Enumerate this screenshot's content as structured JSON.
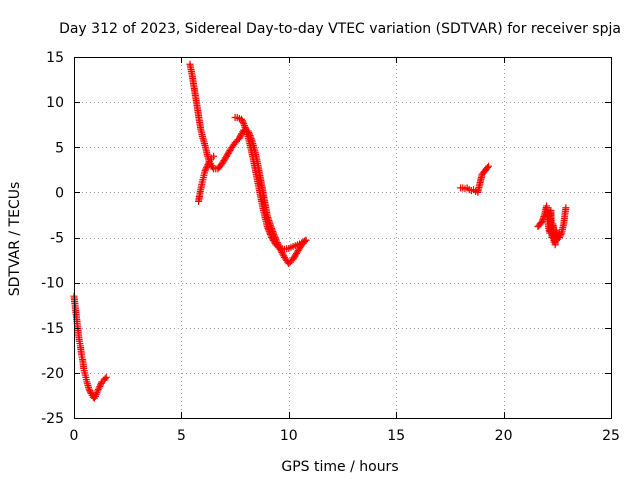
{
  "chart_data": {
    "type": "scatter",
    "title": "Day 312 of 2023, Sidereal Day-to-day VTEC variation (SDTVAR) for receiver spja",
    "xlabel": "GPS time / hours",
    "ylabel": "SDTVAR / TECUs",
    "xlim": [
      0,
      25
    ],
    "ylim": [
      -25,
      15
    ],
    "xticks": [
      0,
      5,
      10,
      15,
      20,
      25
    ],
    "yticks": [
      -25,
      -20,
      -15,
      -10,
      -5,
      0,
      5,
      10,
      15
    ],
    "grid": true,
    "marker": "+",
    "color": "#ff0000",
    "series": [
      {
        "name": "segment-1",
        "x": [
          0.0,
          0.05,
          0.1,
          0.15,
          0.2,
          0.25,
          0.3,
          0.35,
          0.4,
          0.45,
          0.5,
          0.55,
          0.6,
          0.7,
          0.8,
          0.9,
          0.95,
          1.0,
          1.1,
          1.2,
          1.3,
          1.4,
          1.5
        ],
        "y": [
          -11.5,
          -12.5,
          -13.5,
          -14.5,
          -15.5,
          -16.5,
          -17.0,
          -18.0,
          -18.5,
          -19.5,
          -20.0,
          -20.5,
          -21.0,
          -21.8,
          -22.3,
          -22.7,
          -22.8,
          -22.6,
          -22.0,
          -21.5,
          -21.0,
          -20.8,
          -20.5
        ]
      },
      {
        "name": "segment-2",
        "x": [
          5.4,
          5.5,
          5.6,
          5.7,
          5.8,
          5.9,
          6.0,
          6.1,
          6.2,
          6.3,
          6.4,
          6.5,
          6.7,
          6.9,
          7.1,
          7.3,
          7.5,
          7.7,
          7.8,
          7.9,
          8.0,
          8.1,
          8.2,
          8.3,
          8.4,
          8.5,
          8.6,
          8.7,
          8.8,
          8.9,
          9.0,
          9.2,
          9.4,
          9.6,
          9.8,
          10.0,
          10.2,
          10.4,
          10.6,
          10.8
        ],
        "y": [
          14.2,
          13.0,
          11.5,
          10.0,
          8.5,
          7.0,
          6.0,
          5.2,
          4.2,
          3.4,
          3.0,
          2.6,
          2.6,
          3.2,
          4.0,
          4.8,
          5.5,
          6.0,
          6.5,
          6.9,
          7.0,
          6.8,
          6.3,
          5.6,
          4.8,
          3.8,
          2.6,
          1.3,
          0.0,
          -1.3,
          -2.6,
          -4.0,
          -5.2,
          -6.3,
          -7.2,
          -7.9,
          -7.4,
          -6.6,
          -5.8,
          -5.3
        ]
      },
      {
        "name": "segment-3",
        "x": [
          5.8,
          5.85,
          5.9,
          5.95,
          6.0,
          6.05,
          6.1,
          6.2,
          6.3,
          6.4,
          6.5
        ],
        "y": [
          -1.0,
          -0.3,
          0.3,
          0.9,
          1.4,
          1.9,
          2.4,
          2.9,
          3.4,
          3.8,
          4.0
        ]
      },
      {
        "name": "segment-4",
        "x": [
          7.5,
          7.6,
          7.7,
          7.8,
          7.9,
          8.0,
          8.1,
          8.2,
          8.3,
          8.4,
          8.5,
          8.6,
          8.7,
          8.8,
          8.9,
          9.0,
          9.2,
          9.4,
          9.6,
          9.8,
          10.0,
          10.2,
          10.4,
          10.6,
          10.8
        ],
        "y": [
          8.3,
          8.3,
          8.2,
          8.1,
          7.6,
          7.0,
          6.2,
          5.2,
          4.2,
          3.0,
          1.8,
          0.6,
          -0.6,
          -1.8,
          -2.8,
          -3.8,
          -5.0,
          -5.8,
          -6.2,
          -6.3,
          -6.2,
          -6.0,
          -5.8,
          -5.6,
          -5.3
        ]
      },
      {
        "name": "segment-5",
        "x": [
          18.0,
          18.1,
          18.2,
          18.3,
          18.4,
          18.5,
          18.6,
          18.7,
          18.8,
          19.0,
          19.1,
          19.2,
          19.3
        ],
        "y": [
          0.5,
          0.5,
          0.4,
          0.5,
          0.3,
          0.2,
          0.3,
          0.1,
          0.0,
          2.0,
          2.3,
          2.6,
          2.9
        ]
      },
      {
        "name": "segment-6",
        "x": [
          21.6,
          21.7,
          21.8,
          21.9,
          22.0,
          22.05,
          22.1,
          22.15,
          22.2,
          22.25,
          22.3,
          22.35,
          22.4,
          22.45,
          22.5,
          22.55,
          22.6,
          22.7,
          22.8,
          22.85,
          22.9
        ],
        "y": [
          -3.8,
          -3.5,
          -3.2,
          -2.5,
          -1.5,
          -3.0,
          -4.0,
          -4.5,
          -2.0,
          -5.0,
          -3.5,
          -5.5,
          -5.8,
          -4.2,
          -5.2,
          -4.8,
          -5.0,
          -4.5,
          -3.5,
          -2.5,
          -1.7
        ]
      }
    ]
  }
}
